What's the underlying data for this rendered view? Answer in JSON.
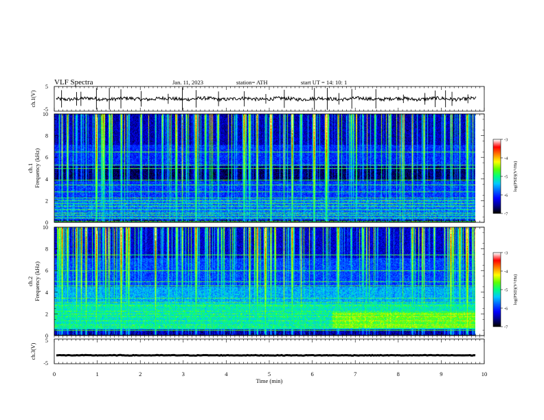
{
  "header": {
    "title": "VLF  Spectra",
    "date": "Jan. 11, 2023",
    "station": "station= ATH",
    "start_ut": "start  UT  =    14: 10: 1"
  },
  "colormap": [
    "#000000",
    "#00008c",
    "#0000ff",
    "#0060ff",
    "#00c8ff",
    "#00ff80",
    "#60ff00",
    "#ffff00",
    "#ff8000",
    "#ff0000",
    "#ffffff"
  ],
  "chart_data": [
    {
      "type": "line",
      "name": "ch1-waveform",
      "ylabel": "ch.1(V)",
      "ylim": [
        -5,
        5
      ],
      "yticks": [
        "5",
        "-5"
      ],
      "xlim": [
        0,
        10
      ],
      "baseline_v": 0,
      "spikes_min": [
        0.17,
        0.52,
        0.62,
        0.98,
        1.28,
        1.55,
        2.02,
        2.65,
        2.98,
        3.3,
        3.82,
        4.42,
        4.92,
        5.35,
        6.05,
        6.35,
        6.62,
        6.92,
        7.48,
        8.12,
        8.62,
        8.86,
        9.1,
        9.25,
        9.62
      ]
    },
    {
      "type": "heatmap",
      "name": "ch1-spectrogram",
      "ylabel": "ch.1",
      "ylabel2": "Frequency  (kHz)",
      "xlim": [
        0,
        10
      ],
      "ylim": [
        0,
        10
      ],
      "data_extent_min": 9.82,
      "yticks": [
        "0",
        "2",
        "4",
        "6",
        "8",
        "10"
      ],
      "colorbar_label": "log(PSD)(V²/Hz)",
      "colorbar_ticks": [
        "-3",
        "-4",
        "-5",
        "-6",
        "-7"
      ],
      "colorbar_range": [
        -7,
        -3
      ],
      "spheric_times_min": [
        0.12,
        0.17,
        0.31,
        0.52,
        0.62,
        0.74,
        0.98,
        1.13,
        1.28,
        1.55,
        1.73,
        2.02,
        2.36,
        2.51,
        2.65,
        2.85,
        2.98,
        3.3,
        3.52,
        3.82,
        4.2,
        4.42,
        4.55,
        4.73,
        4.92,
        5.05,
        5.35,
        5.55,
        5.75,
        6.05,
        6.35,
        6.62,
        6.92,
        7.2,
        7.48,
        7.8,
        8.12,
        8.35,
        8.62,
        8.86,
        9.1,
        9.25,
        9.45,
        9.62,
        9.75
      ],
      "band_lines_khz": [
        0.15,
        0.45,
        0.7,
        0.9,
        1.2,
        1.5,
        1.75,
        2.0,
        2.3,
        2.85,
        3.45,
        3.9,
        5.0,
        5.3,
        6.5
      ]
    },
    {
      "type": "heatmap",
      "name": "ch2-spectrogram",
      "ylabel": "ch.2",
      "ylabel2": "Frequency  (kHz)",
      "xlim": [
        0,
        10
      ],
      "ylim": [
        0,
        10
      ],
      "data_extent_min": 9.82,
      "yticks": [
        "0",
        "2",
        "4",
        "6",
        "8",
        "10"
      ],
      "colorbar_label": "log(PSD)(V²/Hz)",
      "colorbar_ticks": [
        "-3",
        "-4",
        "-5",
        "-6",
        "-7"
      ],
      "colorbar_range": [
        -7,
        -3
      ],
      "spheric_times_min": [
        0.12,
        0.17,
        0.31,
        0.52,
        0.62,
        0.74,
        0.98,
        1.13,
        1.28,
        1.55,
        1.73,
        2.02,
        2.36,
        2.51,
        2.65,
        2.85,
        2.98,
        3.3,
        3.52,
        3.82,
        4.2,
        4.42,
        4.55,
        4.73,
        4.92,
        5.05,
        5.35,
        5.55,
        5.75,
        6.05,
        6.35,
        6.62,
        6.92,
        7.2,
        7.48,
        7.8,
        8.12,
        8.35,
        8.62,
        8.86,
        9.1,
        9.25,
        9.45,
        9.62,
        9.75
      ],
      "band_lines_khz": [
        0.5,
        0.8,
        1.0,
        1.4,
        1.8,
        2.0,
        2.3,
        2.8,
        3.1,
        3.5,
        4.6,
        5.0,
        6.0,
        7.5
      ]
    },
    {
      "type": "line",
      "name": "ch3-waveform",
      "ylabel": "ch.3(V)",
      "ylim": [
        -5,
        5
      ],
      "yticks": [
        "5",
        "-5"
      ],
      "xlim": [
        0,
        10
      ],
      "baseline_v": -1.6
    }
  ],
  "x_axis": {
    "label": "Time  (min)",
    "ticks": [
      "0",
      "1",
      "2",
      "3",
      "4",
      "5",
      "6",
      "7",
      "8",
      "9",
      "10"
    ]
  }
}
